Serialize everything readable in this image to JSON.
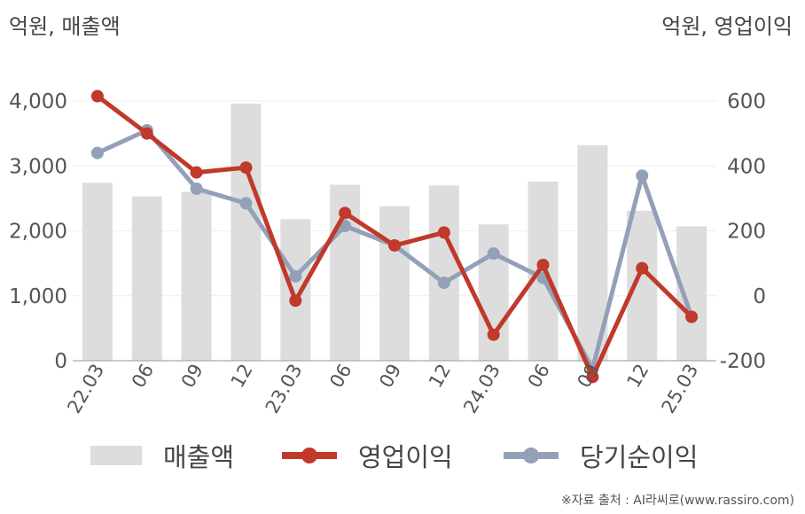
{
  "units": {
    "left": "억원, 매출액",
    "right": "억원, 영업이익"
  },
  "source": "※자료 출처 : AI라씨로(www.rassiro.com)",
  "chart_data": {
    "type": "bar+line",
    "categories": [
      "22.03",
      "06",
      "09",
      "12",
      "23.03",
      "06",
      "09",
      "12",
      "24.03",
      "06",
      "09",
      "12",
      "25.03"
    ],
    "left_axis": {
      "ylim": [
        0,
        4000
      ],
      "ticks": [
        "0",
        "1,000",
        "2,000",
        "3,000",
        "4,000"
      ],
      "tick_values": [
        0,
        1000,
        2000,
        3000,
        4000
      ]
    },
    "right_axis": {
      "ylim": [
        -200,
        600
      ],
      "ticks": [
        "-200",
        "0",
        "200",
        "400",
        "600"
      ],
      "tick_values": [
        -200,
        0,
        200,
        400,
        600
      ]
    },
    "series": [
      {
        "name": "매출액",
        "kind": "bar",
        "axis": "left",
        "color": "#dddddd",
        "values": [
          2740,
          2530,
          2600,
          3960,
          2180,
          2710,
          2380,
          2700,
          2100,
          2760,
          3320,
          2310,
          2070
        ]
      },
      {
        "name": "영업이익",
        "kind": "line",
        "axis": "right",
        "color": "#c0392b",
        "values": [
          615,
          500,
          380,
          395,
          -15,
          255,
          155,
          195,
          -120,
          95,
          -250,
          85,
          -65
        ]
      },
      {
        "name": "당기순이익",
        "kind": "line",
        "axis": "right",
        "color": "#94a0b8",
        "values": [
          440,
          510,
          330,
          285,
          60,
          215,
          155,
          40,
          130,
          55,
          -225,
          370,
          -65
        ]
      }
    ]
  }
}
